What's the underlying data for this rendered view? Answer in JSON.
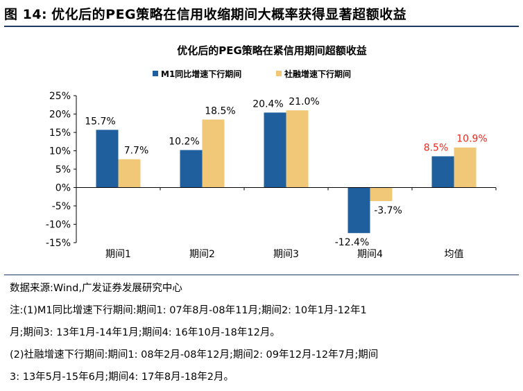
{
  "figure": {
    "number": "图 14:",
    "title": "优化后的PEG策略在信用收缩期间大概率获得显著超额收益"
  },
  "chart_data": {
    "type": "bar",
    "title": "优化后的PEG策略在紧信用期间超额收益",
    "categories": [
      "期间1",
      "期间2",
      "期间3",
      "期间4",
      "均值"
    ],
    "series": [
      {
        "name": "M1同比增速下行期间",
        "values": [
          15.7,
          10.2,
          20.4,
          -12.4,
          8.5
        ],
        "color": "#1f5f9e"
      },
      {
        "name": "社融增速下行期间",
        "values": [
          7.7,
          18.5,
          21.0,
          -3.7,
          10.9
        ],
        "color": "#f0c878"
      }
    ],
    "data_labels": [
      [
        "15.7%",
        "10.2%",
        "20.4%",
        "-12.4%",
        "8.5%"
      ],
      [
        "7.7%",
        "18.5%",
        "21.0%",
        "-3.7%",
        "10.9%"
      ]
    ],
    "highlight_label_color": "#e8281e",
    "ylim": [
      -15,
      25
    ],
    "yticks": [
      25,
      20,
      15,
      10,
      5,
      0,
      -5,
      -10,
      -15
    ],
    "ytick_labels": [
      "25%",
      "20%",
      "15%",
      "10%",
      "5%",
      "0%",
      "-5%",
      "-10%",
      "-15%"
    ],
    "legend_position": "top",
    "grid": false
  },
  "notes": {
    "source": "数据来源:Wind,广发证券发展研究中心",
    "note_line1": "注:(1)M1同比增速下行期间:期间1: 07年8月-08年11月;期间2: 10年1月-12年1",
    "note_line2": "月;期间3: 13年1月-14年1月;期间4: 16年10月-18年12月。",
    "note_line3": "(2)社融增速下行期间:期间1: 08年2月-08年12月;期间2: 09年12月-12年7月;期间",
    "note_line4": "3: 13年5月-15年6月;期间4: 17年8月-18年2月。"
  }
}
